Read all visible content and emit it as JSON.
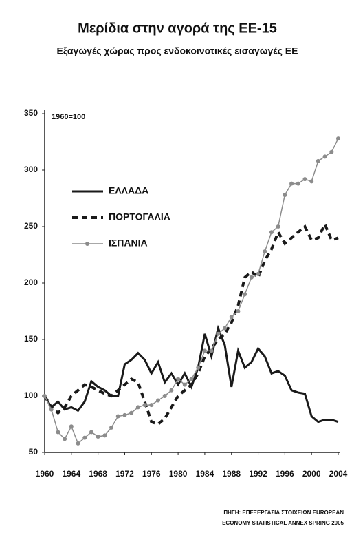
{
  "chart_data": {
    "type": "line",
    "title": "Μερίδια στην αγορά της ΕΕ-15",
    "subtitle": "Εξαγωγές χώρας προς ενδοκοινοτικές εισαγωγές ΕΕ",
    "annotation": "1960=100",
    "source": [
      "ΠΗΓΗ: ΕΠΕΞΕΡΓΑΣΙΑ ΣΤΟΙΧΕΙΩΝ EUROPEAN",
      "ECONOMY STATISTICAL ANNEX SPRING 2005"
    ],
    "x": [
      1960,
      1961,
      1962,
      1963,
      1964,
      1965,
      1966,
      1967,
      1968,
      1969,
      1970,
      1971,
      1972,
      1973,
      1974,
      1975,
      1976,
      1977,
      1978,
      1979,
      1980,
      1981,
      1982,
      1983,
      1984,
      1985,
      1986,
      1987,
      1988,
      1989,
      1990,
      1991,
      1992,
      1993,
      1994,
      1995,
      1996,
      1997,
      1998,
      1999,
      2000,
      2001,
      2002,
      2003,
      2004
    ],
    "series": [
      {
        "name": "ΕΛΛΑΔΑ",
        "color": "#1a1a1a",
        "style": "solid",
        "values": [
          100,
          90,
          95,
          88,
          90,
          87,
          95,
          113,
          108,
          105,
          100,
          100,
          128,
          132,
          138,
          132,
          120,
          130,
          112,
          120,
          110,
          120,
          108,
          125,
          155,
          135,
          160,
          145,
          108,
          140,
          125,
          130,
          142,
          135,
          120,
          122,
          118,
          105,
          103,
          102,
          82,
          77,
          79,
          79,
          77
        ]
      },
      {
        "name": "ΠΟΡΤΟΓΑΛΙΑ",
        "color": "#1a1a1a",
        "style": "dashed",
        "values": [
          100,
          90,
          85,
          90,
          100,
          105,
          110,
          108,
          105,
          102,
          100,
          105,
          110,
          115,
          112,
          95,
          77,
          75,
          80,
          90,
          100,
          105,
          110,
          120,
          135,
          142,
          150,
          155,
          165,
          180,
          205,
          210,
          205,
          220,
          230,
          245,
          235,
          240,
          245,
          250,
          238,
          240,
          252,
          238,
          240
        ]
      },
      {
        "name": "ΙΣΠΑΝΙΑ",
        "color": "#8c8c8c",
        "style": "solid",
        "marker": "circle",
        "values": [
          100,
          88,
          68,
          62,
          73,
          58,
          63,
          68,
          64,
          65,
          72,
          82,
          83,
          85,
          90,
          92,
          92,
          96,
          100,
          105,
          115,
          110,
          115,
          125,
          140,
          140,
          155,
          160,
          170,
          175,
          190,
          205,
          208,
          228,
          245,
          250,
          278,
          288,
          288,
          292,
          290,
          308,
          312,
          316,
          328
        ]
      }
    ],
    "xlim": [
      1960,
      2004
    ],
    "xticks": [
      1960,
      1964,
      1968,
      1972,
      1976,
      1980,
      1984,
      1988,
      1992,
      1996,
      2000,
      2004
    ],
    "ylim": [
      50,
      350
    ],
    "yticks": [
      50,
      100,
      150,
      200,
      250,
      300,
      350
    ],
    "grid": false
  }
}
